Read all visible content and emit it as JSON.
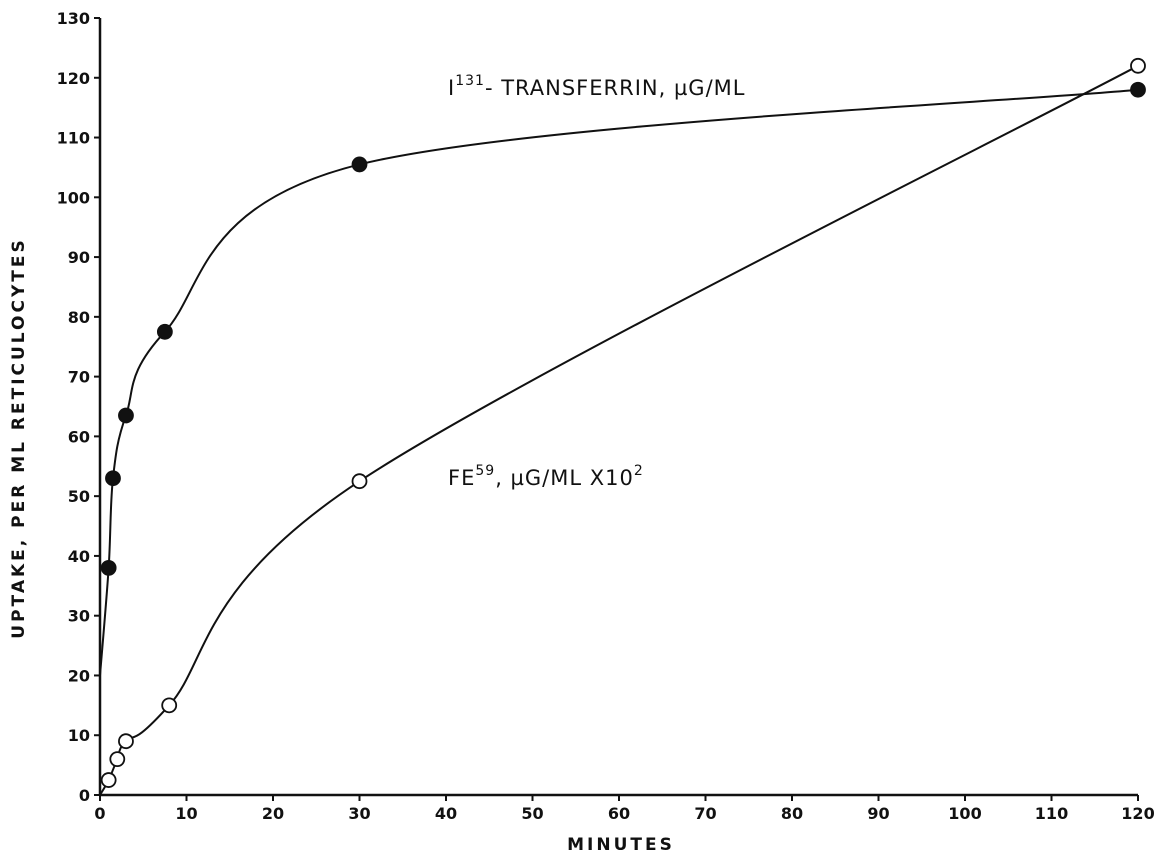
{
  "chart_data": {
    "type": "line",
    "xlabel": "MINUTES",
    "ylabel": "UPTAKE, PER ML RETICULOCYTES",
    "xlim": [
      0,
      120
    ],
    "ylim": [
      0,
      130
    ],
    "x_ticks": [
      0,
      10,
      20,
      30,
      40,
      50,
      60,
      70,
      80,
      90,
      100,
      110,
      120
    ],
    "y_ticks": [
      0,
      10,
      20,
      30,
      40,
      50,
      60,
      70,
      80,
      90,
      100,
      110,
      120,
      130
    ],
    "grid": false,
    "series": [
      {
        "name": "I131- TRANSFERRIN, µG/ML",
        "marker": "filled-circle",
        "x": [
          1,
          1.5,
          3,
          7.5,
          30,
          120
        ],
        "y": [
          38,
          53,
          63.5,
          77.5,
          105.5,
          118
        ]
      },
      {
        "name": "FE59, µG/ML X10²",
        "marker": "open-circle",
        "x": [
          1,
          2,
          3,
          8,
          30,
          120
        ],
        "y": [
          2.5,
          6,
          9,
          15,
          52.5,
          122
        ]
      }
    ],
    "annotations": [
      {
        "base": "I",
        "sup": "131",
        "rest": "- TRANSFERRIN, µG/ML"
      },
      {
        "base": "FE",
        "sup": "59",
        "mid": ", µG/ML  X10",
        "sup2": "2"
      }
    ]
  }
}
